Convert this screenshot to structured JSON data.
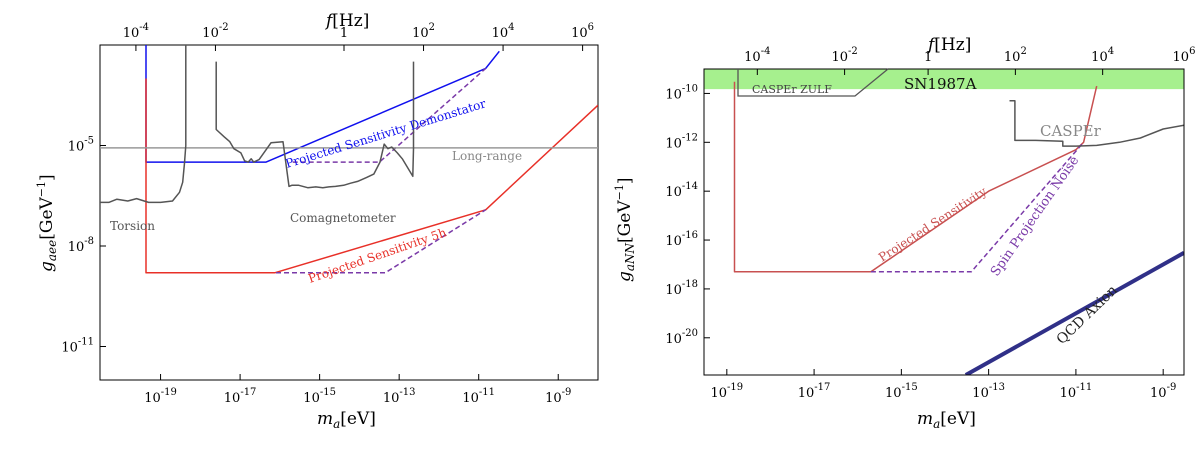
{
  "chart_data": [
    {
      "type": "line",
      "x_scale": "log",
      "y_scale": "log",
      "xlabel": "m_a[eV]",
      "ylabel": "g_aee[GeV^-1]",
      "top_axis_label": "f[Hz]",
      "xlim": [
        3e-21,
        1e-08
      ],
      "ylim": [
        1e-12,
        0.01
      ],
      "x_ticks": [
        {
          "v": 1e-19,
          "label": "10",
          "sup": "-19"
        },
        {
          "v": 1e-17,
          "label": "10",
          "sup": "-17"
        },
        {
          "v": 1e-15,
          "label": "10",
          "sup": "-15"
        },
        {
          "v": 1e-13,
          "label": "10",
          "sup": "-13"
        },
        {
          "v": 1e-11,
          "label": "10",
          "sup": "-11"
        },
        {
          "v": 1e-09,
          "label": "10",
          "sup": "-9"
        }
      ],
      "y_ticks": [
        {
          "v": 1e-05,
          "label": "10",
          "sup": "-5"
        },
        {
          "v": 1e-08,
          "label": "10",
          "sup": "-8"
        },
        {
          "v": 1e-11,
          "label": "10",
          "sup": "-11"
        }
      ],
      "top_ticks": [
        {
          "v": 2.4e-20,
          "label": "10",
          "sup": "-4"
        },
        {
          "v": 2.4e-18,
          "label": "10",
          "sup": "-2"
        },
        {
          "v": 4.1e-15,
          "label": "1",
          "sup": ""
        },
        {
          "v": 4.1e-13,
          "label": "10",
          "sup": "2"
        },
        {
          "v": 4.1e-11,
          "label": "10",
          "sup": "4"
        },
        {
          "v": 4.1e-09,
          "label": "10",
          "sup": "6"
        }
      ],
      "series": [
        {
          "name": "Projected Sensitivity Demonstator",
          "color": "#1010ee",
          "x": [
            4.3e-20,
            4.3e-20,
            4.5e-17,
            1.5e-11,
            3.3e-11
          ],
          "y": [
            0.01,
            3.2e-06,
            3.2e-06,
            0.002,
            0.0065
          ]
        },
        {
          "name": "Projected Sensitivity 5h",
          "color": "#e83028",
          "x": [
            4.3e-20,
            4.3e-20,
            7.6e-17,
            1.5e-11,
            1e-08
          ],
          "y": [
            0.001,
            1.6e-09,
            1.6e-09,
            1.2e-07,
            0.00016
          ]
        },
        {
          "name": "",
          "color": "#7a3aa8",
          "dashed": true,
          "x": [
            2.1e-16,
            3.2e-14,
            1.5e-11
          ],
          "y": [
            3.2e-06,
            3.2e-06,
            0.002
          ]
        },
        {
          "name": "",
          "color": "#7a3aa8",
          "dashed": true,
          "x": [
            8e-17,
            4.5e-14,
            1.5e-11
          ],
          "y": [
            1.6e-09,
            1.6e-09,
            1.2e-07
          ]
        },
        {
          "name": "Long-range",
          "color": "#999999",
          "x": [
            3e-21,
            1e-08
          ],
          "y": [
            8.5e-06,
            8.5e-06
          ]
        },
        {
          "name": "Torsion",
          "color": "#555555",
          "x": [
            3e-21,
            5e-21,
            8e-21,
            1.5e-20,
            2.5e-20,
            5e-20,
            1e-19,
            2e-19,
            3e-19,
            3.6e-19,
            4e-19,
            4.3e-19,
            4.3e-19
          ],
          "y": [
            2e-07,
            2e-07,
            2.5e-07,
            2.2e-07,
            2.6e-07,
            2e-07,
            2e-07,
            2.2e-07,
            4e-07,
            8e-07,
            3e-06,
            1e-05,
            0.01
          ]
        },
        {
          "name": "Comagnetometer",
          "color": "#555555",
          "x": [
            2.5e-18,
            2.5e-18,
            4e-18,
            5.5e-18,
            7e-18,
            1.05e-17,
            1.3e-17,
            1.6e-17,
            1.9e-17,
            2.2e-17,
            3e-17,
            6e-17,
            1.2e-16,
            1.6e-16,
            1.7e-16,
            2e-16,
            3e-16,
            5e-16,
            8e-16,
            1.2e-15,
            1.7e-15,
            2.5e-15,
            4e-15,
            6e-15,
            9e-15,
            1.5e-14,
            2.3e-14,
            3.3e-14,
            4.2e-14,
            5.2e-14,
            6.5e-14,
            9e-14,
            1.2e-13,
            2.2e-13,
            2.3e-13,
            2.3e-13
          ],
          "y": [
            0.0032,
            3e-05,
            1.8e-05,
            1.3e-05,
            8e-06,
            6e-06,
            3.5e-06,
            3.2e-06,
            4e-06,
            3.2e-06,
            3.8e-06,
            1.2e-05,
            1.3e-05,
            1e-06,
            6e-07,
            6.5e-07,
            6.5e-07,
            5.5e-07,
            5.8e-07,
            5.5e-07,
            5.8e-07,
            6e-07,
            6.5e-07,
            7.5e-07,
            8.5e-07,
            1.1e-06,
            1.4e-06,
            3.2e-06,
            1.1e-05,
            8e-06,
            9e-06,
            6e-06,
            4e-06,
            1.2e-06,
            8e-06,
            0.0032
          ]
        }
      ],
      "annotations": [
        {
          "text": "Projected Sensitivity Demonstator",
          "color": "#1010ee"
        },
        {
          "text": "Long-range",
          "color": "#888888"
        },
        {
          "text": "Torsion",
          "color": "#555555"
        },
        {
          "text": "Comagnetometer",
          "color": "#555555"
        },
        {
          "text": "Projected Sensitivity 5h",
          "color": "#e83028"
        }
      ]
    },
    {
      "type": "line",
      "x_scale": "log",
      "y_scale": "log",
      "xlabel": "m_a[eV]",
      "ylabel": "g_aNN[GeV^-1]",
      "top_axis_label": "f[Hz]",
      "xlim": [
        3e-20,
        3e-09
      ],
      "ylim": [
        3e-22,
        1e-09
      ],
      "x_ticks": [
        {
          "v": 1e-19,
          "label": "10",
          "sup": "-19"
        },
        {
          "v": 1e-17,
          "label": "10",
          "sup": "-17"
        },
        {
          "v": 1e-15,
          "label": "10",
          "sup": "-15"
        },
        {
          "v": 1e-13,
          "label": "10",
          "sup": "-13"
        },
        {
          "v": 1e-11,
          "label": "10",
          "sup": "-11"
        },
        {
          "v": 1e-09,
          "label": "10",
          "sup": "-9"
        }
      ],
      "y_ticks": [
        {
          "v": 1e-10,
          "label": "10",
          "sup": "-10"
        },
        {
          "v": 1e-12,
          "label": "10",
          "sup": "-12"
        },
        {
          "v": 1e-14,
          "label": "10",
          "sup": "-14"
        },
        {
          "v": 1e-16,
          "label": "10",
          "sup": "-16"
        },
        {
          "v": 1e-18,
          "label": "10",
          "sup": "-18"
        },
        {
          "v": 1e-20,
          "label": "10",
          "sup": "-20"
        }
      ],
      "top_ticks": [
        {
          "v": 5e-19,
          "label": "10",
          "sup": "-4"
        },
        {
          "v": 5e-17,
          "label": "10",
          "sup": "-2"
        },
        {
          "v": 4.1e-15,
          "label": "1",
          "sup": ""
        },
        {
          "v": 4.1e-13,
          "label": "10",
          "sup": "2"
        },
        {
          "v": 4.1e-11,
          "label": "10",
          "sup": "4"
        },
        {
          "v": 3e-09,
          "label": "10",
          "sup": "6"
        }
      ],
      "series": [
        {
          "name": "Projected Sensitivity",
          "color": "#c85050",
          "x": [
            1.5e-19,
            1.5e-19,
            2e-16,
            1e-13,
            1e-11,
            1.5e-11,
            3e-11
          ],
          "y": [
            3e-10,
            5e-18,
            5e-18,
            1e-14,
            5e-13,
            1e-12,
            2e-10
          ]
        },
        {
          "name": "Spin Projection Noise",
          "color": "#7a3aa8",
          "dashed": true,
          "x": [
            2e-16,
            4e-14,
            1.5e-11
          ],
          "y": [
            5e-18,
            5e-18,
            1e-12
          ]
        },
        {
          "name": "CASPEr",
          "color": "#555555",
          "x": [
            3e-13,
            4e-13,
            4e-13,
            1.2e-12,
            5e-12,
            5e-12,
            1e-11,
            3e-11,
            1e-10,
            3e-10,
            1e-09,
            3e-09
          ],
          "y": [
            5e-11,
            5e-11,
            1.2e-12,
            1.2e-12,
            1.1e-12,
            7e-13,
            7e-13,
            7.5e-13,
            1e-12,
            1.5e-12,
            3.5e-12,
            5e-12
          ]
        },
        {
          "name": "QCD Axion",
          "color": "#303088",
          "width": 4,
          "x": [
            3e-14,
            3e-09
          ],
          "y": [
            3e-22,
            3e-17
          ]
        }
      ],
      "bands": [
        {
          "name": "SN1987A",
          "color": "#a6f08e",
          "y": [
            1.5e-10,
            1e-09
          ]
        }
      ],
      "annotations": [
        {
          "text": "SN1987A",
          "color": "#111111"
        },
        {
          "text": "CASPEr ZULF",
          "color": "#444444"
        },
        {
          "text": "CASPEr",
          "color": "#888888"
        },
        {
          "text": "Projected Sensitivity",
          "color": "#c85050"
        },
        {
          "text": "Spin Projection Noise",
          "color": "#7a3aa8"
        },
        {
          "text": "QCD Axion",
          "color": "#222222"
        }
      ]
    }
  ]
}
